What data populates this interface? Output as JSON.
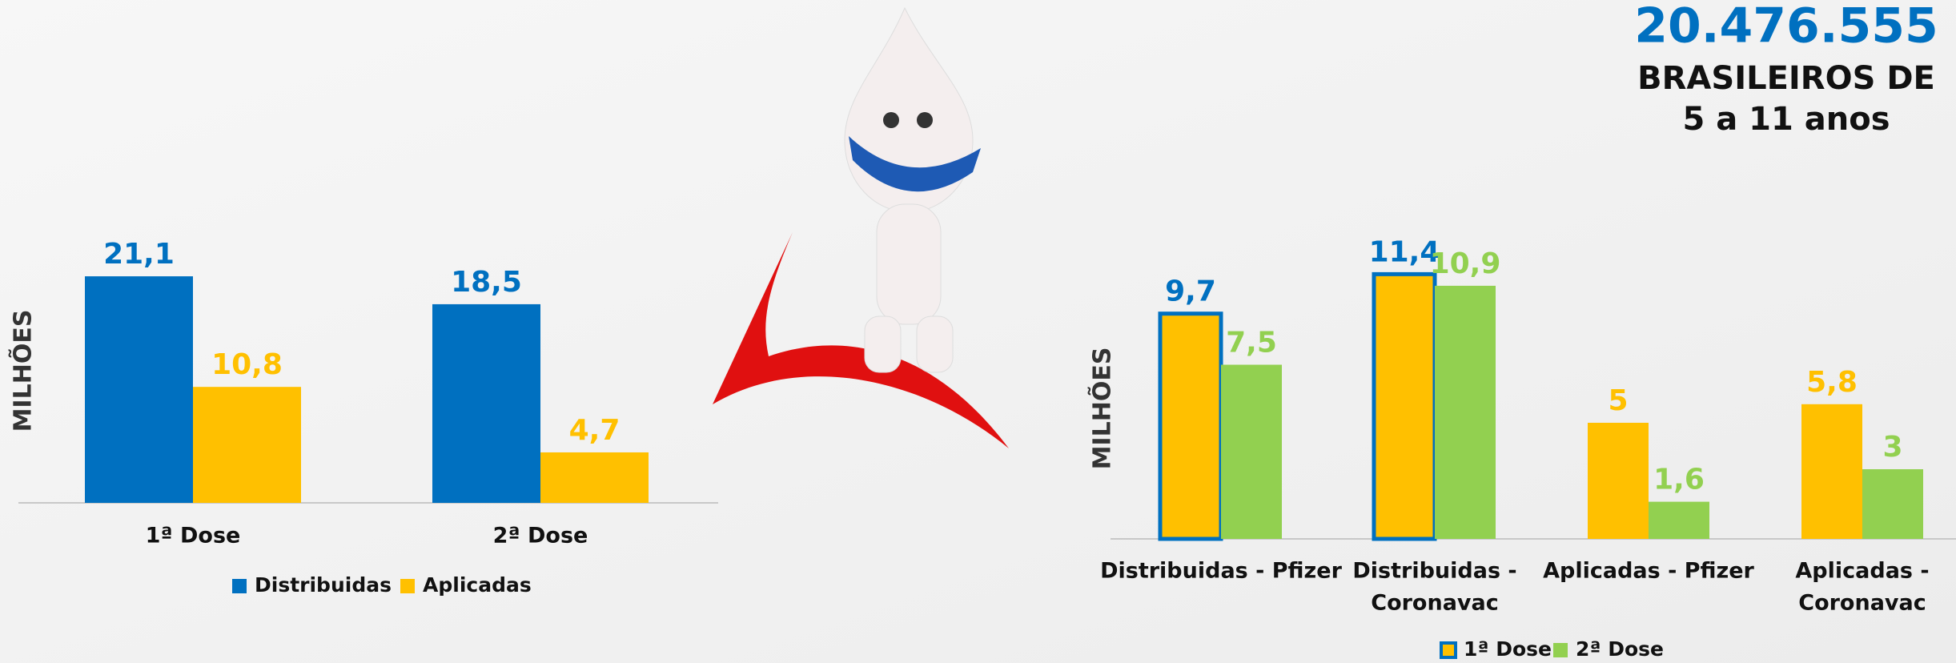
{
  "header": {
    "number": "20.476.555",
    "line1": "BRASILEIROS DE",
    "line2": "5 a 11 anos"
  },
  "chart_data": [
    {
      "type": "bar",
      "ylabel": "MILHÕES",
      "categories": [
        "1ª Dose",
        "2ª Dose"
      ],
      "ylim": [
        0,
        22
      ],
      "series": [
        {
          "name": "Distribuidas",
          "color": "#0070c0",
          "values": [
            21.1,
            18.5
          ],
          "value_labels": [
            "21,1",
            "18,5"
          ]
        },
        {
          "name": "Aplicadas",
          "color": "#ffc000",
          "values": [
            10.8,
            4.7
          ],
          "value_labels": [
            "10,8",
            "4,7"
          ]
        }
      ]
    },
    {
      "type": "bar",
      "ylabel": "MILHÕES",
      "categories": [
        "Distribuidas - Pfizer",
        [
          "Distribuidas -",
          "Coronavac"
        ],
        "Aplicadas - Pfizer",
        [
          "Aplicadas -",
          "Coronavac"
        ]
      ],
      "ylim": [
        0,
        12
      ],
      "series": [
        {
          "name": "1ª Dose",
          "color": "#ffc000",
          "edge_colors": [
            "#0070c0",
            "#0070c0",
            null,
            null
          ],
          "values": [
            9.7,
            11.4,
            5,
            5.8
          ],
          "value_labels": [
            "9,7",
            "11,4",
            "5",
            "5,8"
          ]
        },
        {
          "name": "2ª Dose",
          "color": "#92d050",
          "values": [
            7.5,
            10.9,
            1.6,
            3
          ],
          "value_labels": [
            "7,5",
            "10,9",
            "1,6",
            "3"
          ]
        }
      ]
    }
  ]
}
